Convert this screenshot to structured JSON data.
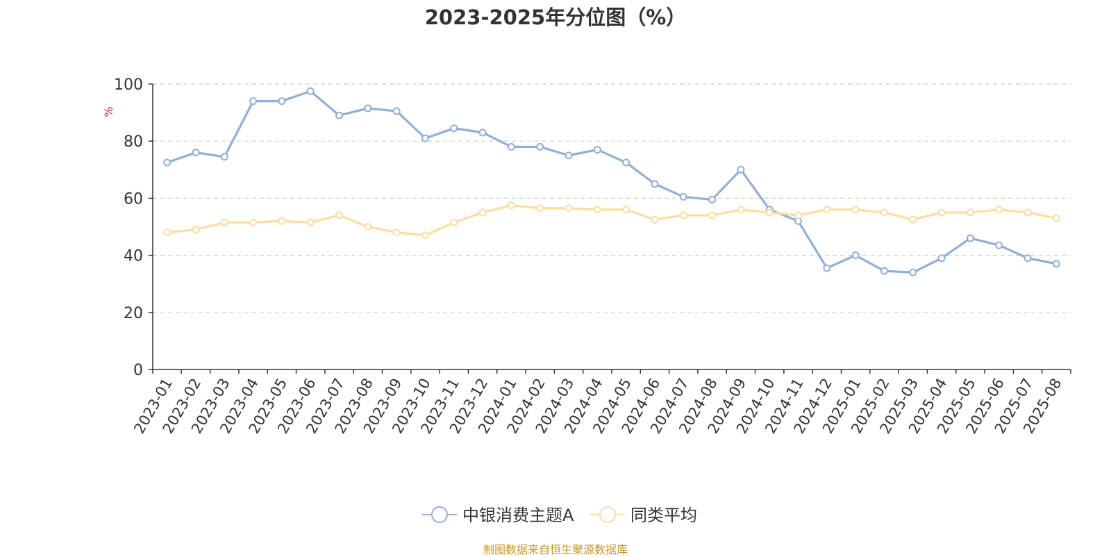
{
  "chart_data": {
    "type": "line",
    "title": "2023-2025年分位图（%）",
    "ylabel": "%",
    "xlabel": "",
    "ylim": [
      0,
      100
    ],
    "y_ticks": [
      0,
      20,
      40,
      60,
      80,
      100
    ],
    "grid": true,
    "legend_position": "bottom-center",
    "categories": [
      "2023-01",
      "2023-02",
      "2023-03",
      "2023-04",
      "2023-05",
      "2023-06",
      "2023-07",
      "2023-08",
      "2023-09",
      "2023-10",
      "2023-11",
      "2023-12",
      "2024-01",
      "2024-02",
      "2024-03",
      "2024-04",
      "2024-05",
      "2024-06",
      "2024-07",
      "2024-08",
      "2024-09",
      "2024-10",
      "2024-11",
      "2024-12",
      "2025-01",
      "2025-02",
      "2025-03",
      "2025-04",
      "2025-05",
      "2025-06",
      "2025-07",
      "2025-08"
    ],
    "series": [
      {
        "name": "中银消费主题A",
        "color": "#8eafdb",
        "values": [
          72.5,
          76,
          74.5,
          94,
          94,
          97.5,
          89,
          91.5,
          90.5,
          81,
          84.5,
          83,
          78,
          78,
          75,
          77,
          72.5,
          65,
          60.5,
          59.5,
          70,
          56,
          52,
          35.5,
          40,
          34.5,
          34,
          39,
          46,
          43.5,
          39,
          37
        ]
      },
      {
        "name": "同类平均",
        "color": "#fddc9c",
        "values": [
          48,
          49,
          51.5,
          51.5,
          52,
          51.5,
          54,
          50,
          48,
          47,
          51.5,
          55,
          57.5,
          56.5,
          56.5,
          56,
          56,
          52.5,
          54,
          54,
          56,
          55,
          54,
          56,
          56,
          55,
          52.5,
          55,
          55,
          56,
          55,
          53
        ]
      }
    ],
    "source": "制图数据来自恒生聚源数据库"
  }
}
